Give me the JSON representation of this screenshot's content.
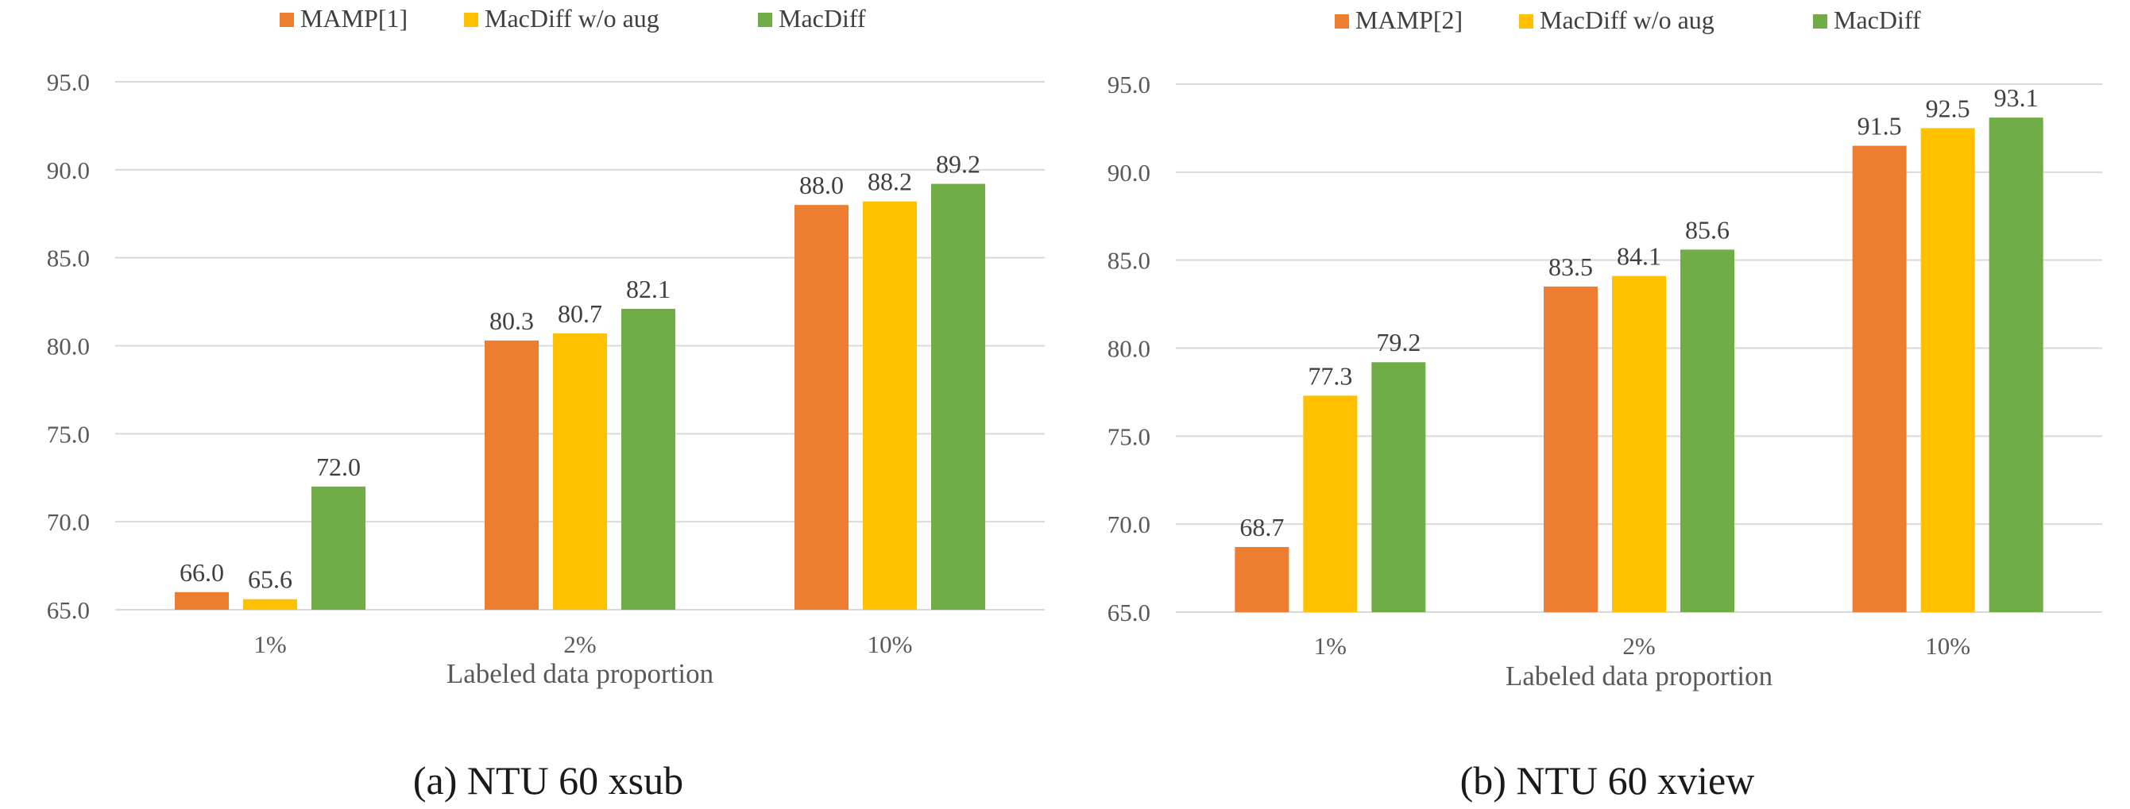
{
  "colors": {
    "series_1": "#ED7D31",
    "series_2": "#FFC000",
    "series_3": "#70AD47"
  },
  "chart_data": [
    {
      "type": "bar",
      "caption": "(a) NTU 60 xsub",
      "xlabel": "Labeled data proportion",
      "ylabel": "",
      "categories": [
        "1%",
        "2%",
        "10%"
      ],
      "ylim": [
        65.0,
        95.0
      ],
      "yticks": [
        "65.0",
        "70.0",
        "75.0",
        "80.0",
        "85.0",
        "90.0",
        "95.0"
      ],
      "grid": true,
      "legend_position": "top-center",
      "series": [
        {
          "name": "MAMP[1]",
          "values": [
            66.0,
            80.3,
            88.0
          ],
          "labels": [
            "66.0",
            "80.3",
            "88.0"
          ]
        },
        {
          "name": "MacDiff w/o aug",
          "values": [
            65.6,
            80.7,
            88.2
          ],
          "labels": [
            "65.6",
            "80.7",
            "88.2"
          ]
        },
        {
          "name": "MacDiff",
          "values": [
            72.0,
            82.1,
            89.2
          ],
          "labels": [
            "72.0",
            "82.1",
            "89.2"
          ]
        }
      ]
    },
    {
      "type": "bar",
      "caption": "(b) NTU 60 xview",
      "xlabel": "Labeled data proportion",
      "ylabel": "",
      "categories": [
        "1%",
        "2%",
        "10%"
      ],
      "ylim": [
        65.0,
        95.0
      ],
      "yticks": [
        "65.0",
        "70.0",
        "75.0",
        "80.0",
        "85.0",
        "90.0",
        "95.0"
      ],
      "grid": true,
      "legend_position": "top-center",
      "series": [
        {
          "name": "MAMP[2]",
          "values": [
            68.7,
            83.5,
            91.5
          ],
          "labels": [
            "68.7",
            "83.5",
            "91.5"
          ]
        },
        {
          "name": "MacDiff w/o aug",
          "values": [
            77.3,
            84.1,
            92.5
          ],
          "labels": [
            "77.3",
            "84.1",
            "92.5"
          ]
        },
        {
          "name": "MacDiff",
          "values": [
            79.2,
            85.6,
            93.1
          ],
          "labels": [
            "79.2",
            "85.6",
            "93.1"
          ]
        }
      ]
    }
  ]
}
